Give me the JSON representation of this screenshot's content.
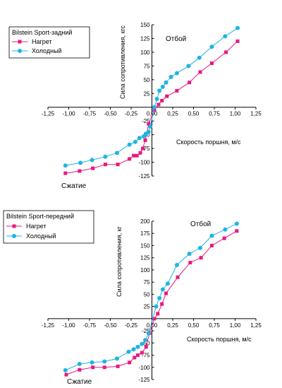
{
  "chart_data": [
    {
      "type": "line",
      "title": "",
      "xlabel": "Скорость поршня, м/с",
      "ylabel": "Сила сопротивления, кгс",
      "xlim": [
        -1.25,
        1.25
      ],
      "ylim": [
        -125,
        150
      ],
      "xticks": [
        "-1,25",
        "-1,00",
        "-0,75",
        "-0,50",
        "-0,25",
        "0,00",
        "0,25",
        "0,50",
        "0,75",
        "1,00",
        "1,25"
      ],
      "yticks": [
        "-125",
        "-100",
        "-75",
        "-50",
        "-25",
        "25",
        "50",
        "75",
        "100",
        "125",
        "150"
      ],
      "annotations": [
        "Отбой",
        "Сжатие"
      ],
      "legend": {
        "title": "Bilstein Sport-задний",
        "placement": "top-left"
      },
      "grid": false,
      "colors": {
        "heated": "#e8197f",
        "cold": "#1fb3e6"
      },
      "series": [
        {
          "name": "Нагрет",
          "marker": "square",
          "x": [
            -1.04,
            -0.87,
            -0.71,
            -0.56,
            -0.41,
            -0.27,
            -0.22,
            -0.18,
            -0.14,
            -0.11,
            -0.08,
            -0.04,
            0.03,
            0.08,
            0.12,
            0.18,
            0.3,
            0.45,
            0.58,
            0.72,
            0.89,
            1.03
          ],
          "y": [
            -120,
            -116,
            -111,
            -104,
            -104,
            -94,
            -88,
            -88,
            -83,
            -75,
            -60,
            -30,
            -5,
            5,
            12,
            20,
            30,
            45,
            64,
            80,
            100,
            120
          ]
        },
        {
          "name": "Холодный",
          "marker": "circle",
          "x": [
            -1.04,
            -0.86,
            -0.72,
            -0.56,
            -0.42,
            -0.27,
            -0.2,
            -0.15,
            -0.1,
            -0.07,
            -0.04,
            -0.02,
            0.03,
            0.06,
            0.09,
            0.13,
            0.17,
            0.23,
            0.3,
            0.44,
            0.57,
            0.72,
            0.88,
            1.03
          ],
          "y": [
            -106,
            -101,
            -96,
            -90,
            -83,
            -68,
            -63,
            -56,
            -53,
            -48,
            -45,
            -35,
            0,
            15,
            30,
            37,
            45,
            55,
            62,
            75,
            90,
            110,
            129,
            144
          ]
        }
      ]
    },
    {
      "type": "line",
      "title": "",
      "xlabel": "Скорость поршня, м/с",
      "ylabel": "Сила сопротивления, кг",
      "xlim": [
        -1.25,
        1.25
      ],
      "ylim": [
        -125,
        200
      ],
      "xticks": [
        "-1,25",
        "-1,00",
        "-0,75",
        "-0,50",
        "-0,25",
        "0,00",
        "0,25",
        "0,50",
        "0,75",
        "1,00",
        "1,25"
      ],
      "yticks": [
        "-125",
        "-100",
        "-75",
        "-50",
        "-25",
        "25",
        "50",
        "75",
        "100",
        "125",
        "150",
        "175",
        "200"
      ],
      "annotations": [
        "Отбой",
        "Сжатие"
      ],
      "legend": {
        "title": "Bilstein Sport-передний",
        "placement": "top-left"
      },
      "grid": false,
      "colors": {
        "heated": "#e8197f",
        "cold": "#1fb3e6"
      },
      "series": [
        {
          "name": "Нагрет",
          "marker": "square",
          "x": [
            -1.03,
            -0.87,
            -0.71,
            -0.57,
            -0.41,
            -0.27,
            -0.21,
            -0.17,
            -0.12,
            -0.07,
            -0.03,
            0.03,
            0.07,
            0.12,
            0.17,
            0.31,
            0.46,
            0.59,
            0.72,
            0.87,
            1.02
          ],
          "y": [
            -115,
            -105,
            -100,
            -100,
            -98,
            -90,
            -80,
            -75,
            -70,
            -58,
            -30,
            0,
            10,
            30,
            52,
            85,
            115,
            125,
            150,
            165,
            180
          ]
        },
        {
          "name": "Холодный",
          "marker": "circle",
          "x": [
            -1.04,
            -0.87,
            -0.72,
            -0.57,
            -0.42,
            -0.28,
            -0.22,
            -0.17,
            -0.12,
            -0.08,
            -0.04,
            0.05,
            0.09,
            0.13,
            0.19,
            0.3,
            0.45,
            0.58,
            0.72,
            0.88,
            1.02
          ],
          "y": [
            -106,
            -93,
            -90,
            -88,
            -82,
            -68,
            -63,
            -58,
            -52,
            -44,
            -30,
            25,
            42,
            60,
            72,
            110,
            133,
            145,
            170,
            183,
            195
          ]
        }
      ]
    }
  ]
}
